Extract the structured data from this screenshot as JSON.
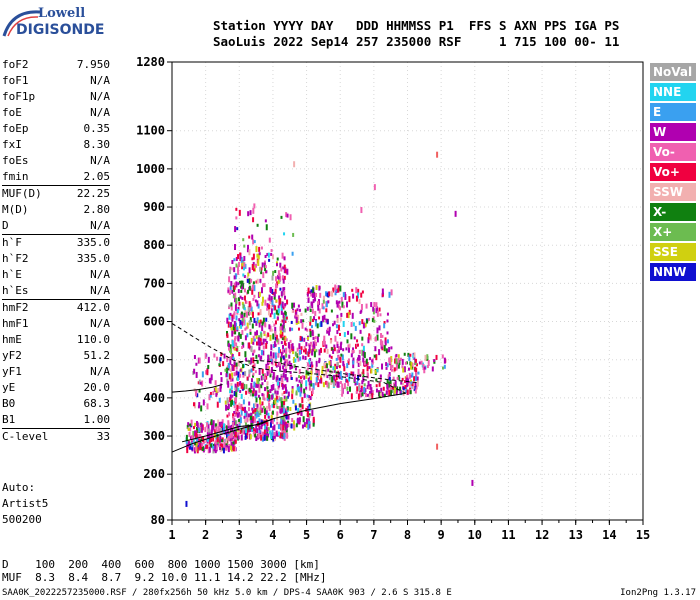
{
  "logo": {
    "line1": "Lowell",
    "line2": "DIGISONDE"
  },
  "header": {
    "line1": "Station YYYY DAY   DDD HHMMSS P1  FFS S AXN PPS IGA PS",
    "line2": "SaoLuis 2022 Sep14 257 235000 RSF     1 715 100 00- 11"
  },
  "params": [
    {
      "k": "foF2",
      "v": "7.950"
    },
    {
      "k": "foF1",
      "v": "N/A"
    },
    {
      "k": "foF1p",
      "v": "N/A"
    },
    {
      "k": "foE",
      "v": "N/A"
    },
    {
      "k": "foEp",
      "v": "0.35"
    },
    {
      "k": "fxI",
      "v": "8.30"
    },
    {
      "k": "foEs",
      "v": "N/A"
    },
    {
      "k": "fmin",
      "v": "2.05"
    },
    {
      "k": "MUF(D)",
      "v": "22.25"
    },
    {
      "k": "M(D)",
      "v": "2.80"
    },
    {
      "k": "D",
      "v": "N/A"
    },
    {
      "k": "h`F",
      "v": "335.0"
    },
    {
      "k": "h`F2",
      "v": "335.0"
    },
    {
      "k": "h`E",
      "v": "N/A"
    },
    {
      "k": "h`Es",
      "v": "N/A"
    },
    {
      "k": "hmF2",
      "v": "412.0"
    },
    {
      "k": "hmF1",
      "v": "N/A"
    },
    {
      "k": "hmE",
      "v": "110.0"
    },
    {
      "k": "yF2",
      "v": "51.2"
    },
    {
      "k": "yF1",
      "v": "N/A"
    },
    {
      "k": "yE",
      "v": "20.0"
    },
    {
      "k": "B0",
      "v": "68.3"
    },
    {
      "k": "B1",
      "v": "1.00"
    },
    {
      "k": "C-level",
      "v": "33"
    }
  ],
  "auto": {
    "l1": "Auto:",
    "l2": "Artist5",
    "l3": "500200"
  },
  "legend": [
    {
      "label": "NoVal",
      "color": "#a6a6a6"
    },
    {
      "label": "NNE",
      "color": "#22d4f0"
    },
    {
      "label": "E",
      "color": "#3aa0f0"
    },
    {
      "label": "W",
      "color": "#b000b0"
    },
    {
      "label": "Vo-",
      "color": "#f060b0"
    },
    {
      "label": "Vo+",
      "color": "#f00040"
    },
    {
      "label": "SSW",
      "color": "#f2b0b0"
    },
    {
      "label": "X-",
      "color": "#108010"
    },
    {
      "label": "X+",
      "color": "#6cbc50"
    },
    {
      "label": "SSE",
      "color": "#d0d010"
    },
    {
      "label": "NNW",
      "color": "#1010d0"
    }
  ],
  "conversion": {
    "d_line": "D    100  200  400  600  800 1000 1500 3000 [km]",
    "muf_line": "MUF  8.3  8.4  8.7  9.2 10.0 11.1 14.2 22.2 [MHz]"
  },
  "footer": "SAA0K_2022257235000.RSF / 280fx256h 50 kHz 5.0 km / DPS-4 SAA0K 903 / 2.6 S 315.8 E",
  "version": "Ion2Png 1.3.17",
  "chart_data": {
    "type": "scatter",
    "x_ticks": [
      "1",
      "2",
      "3",
      "4",
      "5",
      "6",
      "7",
      "8",
      "9",
      "10",
      "11",
      "12",
      "13",
      "14",
      "15"
    ],
    "y_ticks": [
      "80",
      "200",
      "300",
      "400",
      "500",
      "600",
      "700",
      "800",
      "900",
      "1000",
      "1100",
      "1280"
    ],
    "xlim": [
      1,
      15
    ],
    "ylim": [
      80,
      1280
    ],
    "y_tick_values": [
      80,
      200,
      300,
      400,
      500,
      600,
      700,
      800,
      900,
      1000,
      1100,
      1280
    ],
    "traces": {
      "o_mode_upper": [
        [
          1.0,
          595
        ],
        [
          2.0,
          540
        ],
        [
          2.8,
          500
        ],
        [
          3.5,
          478
        ],
        [
          4.2,
          470
        ],
        [
          5.0,
          465
        ],
        [
          5.8,
          458
        ],
        [
          6.5,
          450
        ],
        [
          7.3,
          440
        ],
        [
          7.95,
          412
        ]
      ],
      "o_mode_lower": [
        [
          1.0,
          258
        ],
        [
          1.6,
          280
        ],
        [
          2.3,
          300
        ],
        [
          3.0,
          318
        ],
        [
          3.5,
          330
        ],
        [
          4.0,
          345
        ],
        [
          5.0,
          368
        ],
        [
          6.0,
          385
        ],
        [
          7.0,
          398
        ],
        [
          7.95,
          412
        ]
      ],
      "x_mode_lower": [
        [
          1.3,
          285
        ],
        [
          2.0,
          300
        ],
        [
          3.0,
          325
        ],
        [
          3.6,
          330
        ],
        [
          4.0,
          345
        ]
      ],
      "x_mode_upper": [
        [
          3.0,
          495
        ],
        [
          3.5,
          498
        ],
        [
          4.0,
          495
        ],
        [
          4.5,
          485
        ],
        [
          5.0,
          478
        ],
        [
          5.6,
          470
        ],
        [
          6.2,
          462
        ],
        [
          6.8,
          455
        ],
        [
          7.4,
          448
        ],
        [
          8.3,
          440
        ]
      ],
      "left_stub": [
        [
          1.0,
          415
        ],
        [
          1.4,
          418
        ],
        [
          1.8,
          422
        ],
        [
          2.2,
          428
        ],
        [
          2.5,
          435
        ]
      ]
    }
  }
}
